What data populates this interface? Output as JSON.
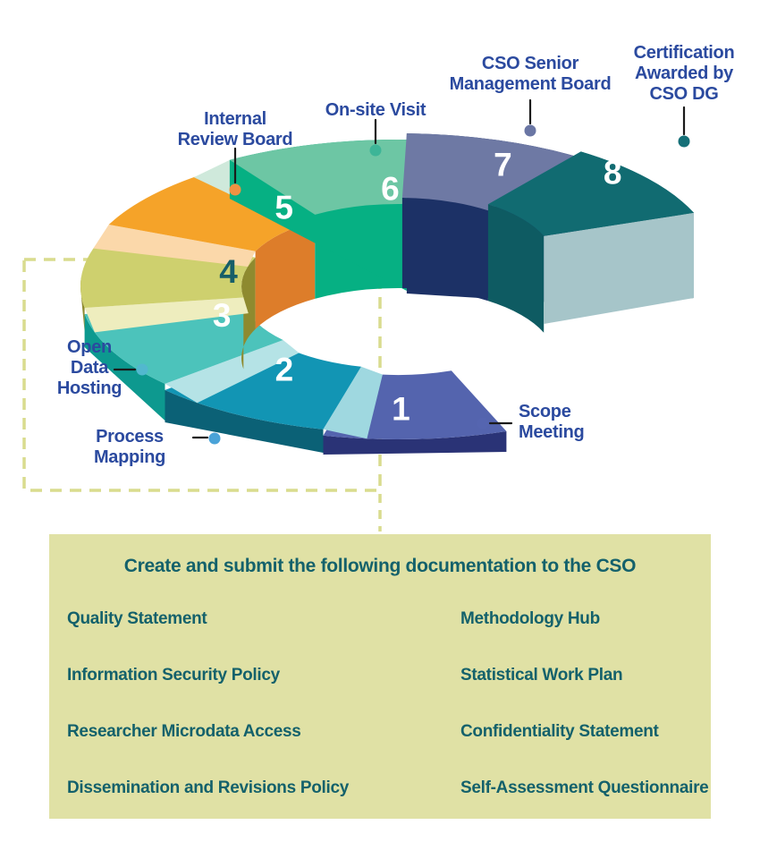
{
  "process": {
    "steps": [
      {
        "number": "1",
        "top_color": "#5464ae",
        "side_color": "#2a3376",
        "riser_before": null,
        "inner_color": null,
        "number_color": "#ffffff"
      },
      {
        "number": "2",
        "top_color": "#1295b4",
        "side_color": "#0b6176",
        "riser_before": "#9fd8e0",
        "inner_color": null,
        "number_color": "#ffffff"
      },
      {
        "number": "3",
        "top_color": "#4cc3bb",
        "side_color": "#0d998f",
        "riser_before": "#b5e3e6",
        "inner_color": null,
        "number_color": "#ffffff"
      },
      {
        "number": "4",
        "top_color": "#ced06e",
        "side_color": "#8e8a2f",
        "riser_before": "#eeedbe",
        "inner_color": "#8e8a2f",
        "number_color": "#175e68"
      },
      {
        "number": "5",
        "top_color": "#f5a329",
        "side_color": "#dd7d2a",
        "riser_before": "#fbd8aa",
        "inner_color": "#dd7d2a",
        "number_color": "#ffffff"
      },
      {
        "number": "6",
        "top_color": "#6dc6a4",
        "side_color": "#06b083",
        "riser_before": "#cfe9db",
        "inner_color": "#06b083",
        "number_color": "#ffffff"
      },
      {
        "number": "7",
        "top_color": "#6e79a4",
        "side_color": "#1c3166",
        "riser_before": null,
        "inner_color": "#1c3166",
        "number_color": "#ffffff"
      },
      {
        "number": "8",
        "top_color": "#116b71",
        "side_color": "#0d5f66",
        "riser_before": null,
        "inner_color": "#0e5b62",
        "number_color": "#ffffff",
        "cap_color": "#a6c5c9"
      }
    ],
    "callouts": [
      {
        "for_step": "1",
        "text": "Scope\nMeeting",
        "dot_color": "#5565b0"
      },
      {
        "for_step": "2",
        "text": "Process Mapping",
        "dot_color": "#4aa3d8"
      },
      {
        "for_step": "3",
        "text": "Open\nData\nHosting",
        "dot_color": "#52b8ce"
      },
      {
        "for_step": "5",
        "text": "Internal\nReview Board",
        "dot_color": "#f09242"
      },
      {
        "for_step": "6",
        "text": "On-site Visit",
        "dot_color": "#3db597"
      },
      {
        "for_step": "7",
        "text": "CSO Senior\nManagement Board",
        "dot_color": "#6a76a4"
      },
      {
        "for_step": "8",
        "text": "Certification\nAwarded by\nCSO DG",
        "dot_color": "#157078"
      }
    ],
    "label_color": "#2b4a9f",
    "leader_line_color": "#1b1b1b",
    "dashed_box_color": "#d9dc8e"
  },
  "docs_box": {
    "title": "Create and submit the following documentation to the CSO",
    "items_left": [
      "Quality Statement",
      "Information Security Policy",
      "Researcher Microdata Access",
      "Dissemination and Revisions Policy"
    ],
    "items_right": [
      "Methodology Hub",
      "Statistical Work Plan",
      "Confidentiality Statement",
      "Self-Assessment Questionnaire"
    ],
    "background": "#e0e1a5",
    "text_color": "#14616b"
  }
}
